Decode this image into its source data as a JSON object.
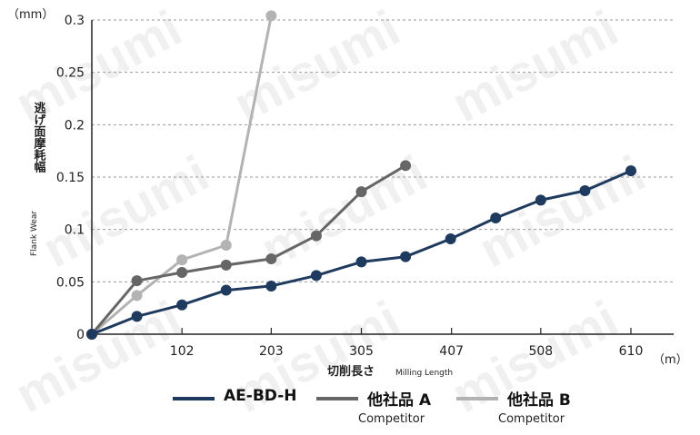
{
  "watermark": "misumi",
  "chart_data": {
    "type": "line",
    "ylabel_unit": "（mm）",
    "ylabel_jp": "逃げ面摩耗幅",
    "ylabel_en": "Flank Wear",
    "xlabel_jp": "切削長さ",
    "xlabel_en": "Milling Length",
    "xlabel_unit": "（m）",
    "ylim": [
      0,
      0.3
    ],
    "xlim": [
      0,
      630
    ],
    "y_ticks": [
      0,
      0.05,
      0.1,
      0.15,
      0.2,
      0.25,
      0.3
    ],
    "y_tick_labels": [
      "0",
      "0.05",
      "0.1",
      "0.15",
      "0.2",
      "0.25",
      "0.3"
    ],
    "x_ticks": [
      102,
      203,
      305,
      407,
      508,
      610
    ],
    "x_tick_labels": [
      "102",
      "203",
      "305",
      "407",
      "508",
      "610"
    ],
    "grid": "horizontal dashed",
    "series": [
      {
        "name": "AE-BD-H",
        "sub": "",
        "color": "#1f3a5f",
        "x": [
          0,
          51,
          102,
          152,
          203,
          254,
          305,
          355,
          406,
          457,
          508,
          558,
          610
        ],
        "y": [
          0,
          0.017,
          0.028,
          0.042,
          0.046,
          0.056,
          0.069,
          0.074,
          0.091,
          0.111,
          0.128,
          0.137,
          0.156
        ]
      },
      {
        "name": "他社品 A",
        "sub": "Competitor",
        "color": "#666666",
        "x": [
          0,
          51,
          102,
          152,
          203,
          254,
          305,
          355
        ],
        "y": [
          0,
          0.051,
          0.059,
          0.066,
          0.072,
          0.094,
          0.136,
          0.161
        ]
      },
      {
        "name": "他社品 B",
        "sub": "Competitor",
        "color": "#b3b3b3",
        "x": [
          0,
          51,
          102,
          152,
          203
        ],
        "y": [
          0,
          0.037,
          0.071,
          0.085,
          0.304
        ]
      }
    ]
  }
}
